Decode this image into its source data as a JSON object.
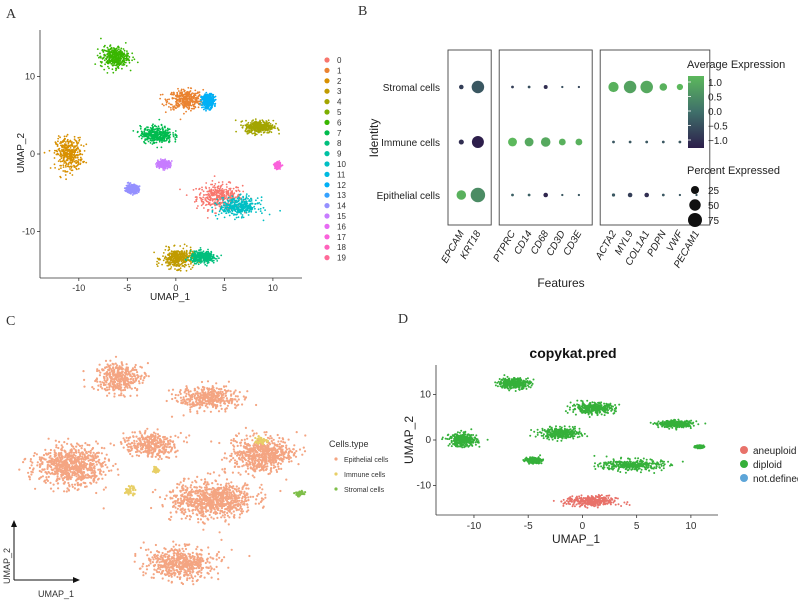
{
  "panels": {
    "a": "A",
    "b": "B",
    "c": "C",
    "d": "D"
  },
  "chart_data": [
    {
      "id": "A",
      "type": "scatter",
      "xlabel": "UMAP_1",
      "ylabel": "UMAP_2",
      "xticks": [
        -10,
        -5,
        0,
        5,
        10
      ],
      "yticks": [
        -10,
        0,
        10
      ],
      "xlim": [
        -14,
        13
      ],
      "ylim": [
        -16,
        16
      ],
      "legend_title": "",
      "categories": [
        "0",
        "1",
        "2",
        "3",
        "4",
        "5",
        "6",
        "7",
        "8",
        "9",
        "10",
        "11",
        "12",
        "13",
        "14",
        "15",
        "16",
        "17",
        "18",
        "19"
      ],
      "colors": [
        "#F8766D",
        "#EA8331",
        "#D89000",
        "#C09B00",
        "#A3A500",
        "#7CAE00",
        "#39B600",
        "#00BB4E",
        "#00BF7D",
        "#00C1A3",
        "#00BFC4",
        "#00BAE0",
        "#00B0F6",
        "#35A2FF",
        "#9590FF",
        "#C77CFF",
        "#E76BF3",
        "#FA62DB",
        "#FF62BC",
        "#FF6A98"
      ],
      "clusters": [
        {
          "x": 4.5,
          "y": -5.5,
          "sx": 2.6,
          "sy": 1.8,
          "cat": 0
        },
        {
          "x": 1.0,
          "y": 7.0,
          "sx": 2.0,
          "sy": 1.4,
          "cat": 1
        },
        {
          "x": -11.0,
          "y": 0.0,
          "sx": 1.5,
          "sy": 2.3,
          "cat": 2
        },
        {
          "x": 0.2,
          "y": -13.5,
          "sx": 1.8,
          "sy": 1.4,
          "cat": 3
        },
        {
          "x": 8.6,
          "y": 3.5,
          "sx": 1.6,
          "sy": 0.9,
          "cat": 4
        },
        {
          "x": -6.3,
          "y": 12.5,
          "sx": 1.6,
          "sy": 1.5,
          "cat": 6
        },
        {
          "x": -2.0,
          "y": 2.5,
          "sx": 1.8,
          "sy": 1.2,
          "cat": 7
        },
        {
          "x": 2.8,
          "y": -13.3,
          "sx": 1.4,
          "sy": 0.8,
          "cat": 8
        },
        {
          "x": 6.5,
          "y": -6.8,
          "sx": 2.2,
          "sy": 1.3,
          "cat": 10
        },
        {
          "x": 3.3,
          "y": 6.8,
          "sx": 0.7,
          "sy": 1.0,
          "cat": 12
        },
        {
          "x": -4.5,
          "y": -4.5,
          "sx": 0.7,
          "sy": 0.6,
          "cat": 14
        },
        {
          "x": -1.2,
          "y": -1.3,
          "sx": 0.7,
          "sy": 0.5,
          "cat": 15
        },
        {
          "x": 10.5,
          "y": -1.5,
          "sx": 0.3,
          "sy": 0.4,
          "cat": 17
        }
      ]
    },
    {
      "id": "B",
      "type": "dotplot",
      "xlabel": "Features",
      "ylabel": "Identity",
      "rows": [
        "Epithelial cells",
        "Immune cells",
        "Stromal cells"
      ],
      "groups": [
        {
          "features": [
            "EPCAM",
            "KRT18"
          ]
        },
        {
          "features": [
            "PTPRC",
            "CD14",
            "CD68",
            "CD3D",
            "CD3E"
          ]
        },
        {
          "features": [
            "ACTA2",
            "MYL9",
            "COL1A1",
            "PDPN",
            "VWF",
            "PECAM1"
          ]
        }
      ],
      "features": [
        "EPCAM",
        "KRT18",
        "PTPRC",
        "CD14",
        "CD68",
        "CD3D",
        "CD3E",
        "ACTA2",
        "MYL9",
        "COL1A1",
        "PDPN",
        "VWF",
        "PECAM1"
      ],
      "avg_expression": [
        [
          0.9,
          0.4,
          -0.2,
          -0.2,
          -0.9,
          -0.3,
          -0.3,
          -0.3,
          -0.6,
          -0.8,
          -0.3,
          -0.3,
          -0.3
        ],
        [
          -0.8,
          -1.0,
          1.0,
          0.8,
          0.8,
          0.9,
          0.9,
          -0.3,
          -0.3,
          -0.3,
          -0.3,
          -0.3,
          -0.6
        ],
        [
          -0.6,
          -0.3,
          -0.6,
          -0.4,
          -0.8,
          -0.4,
          -0.5,
          0.9,
          0.7,
          0.8,
          0.9,
          1.0,
          0.9
        ]
      ],
      "pct_expressed": [
        [
          35,
          80,
          3,
          3,
          8,
          2,
          2,
          4,
          8,
          8,
          3,
          2,
          2
        ],
        [
          10,
          55,
          30,
          30,
          35,
          18,
          18,
          3,
          3,
          3,
          3,
          3,
          5
        ],
        [
          8,
          60,
          3,
          3,
          6,
          2,
          2,
          40,
          60,
          60,
          22,
          15,
          12
        ]
      ],
      "color_legend": {
        "title": "Average Expression",
        "ticks": [
          "1.0",
          "0.5",
          "0.0",
          "−0.5",
          "−1.0"
        ],
        "low": "#2d1e4b",
        "high": "#5cb85c"
      },
      "size_legend": {
        "title": "Percent Expressed",
        "values": [
          "25",
          "50",
          "75"
        ]
      }
    },
    {
      "id": "C",
      "type": "scatter",
      "xlabel": "UMAP_1",
      "ylabel": "UMAP_2",
      "legend_title": "Cells.type",
      "categories": [
        "Epithelial cells",
        "Immune cells",
        "Stromal cells"
      ],
      "colors": [
        "#F4A582",
        "#E8CF66",
        "#7FBF4A"
      ]
    },
    {
      "id": "D",
      "type": "scatter",
      "title": "copykat.pred",
      "xlabel": "UMAP_1",
      "ylabel": "UMAP_2",
      "xticks": [
        -10,
        -5,
        0,
        5,
        10
      ],
      "yticks": [
        -10,
        0,
        10
      ],
      "xlim": [
        -13.5,
        12.5
      ],
      "ylim": [
        -16.5,
        16.5
      ],
      "categories": [
        "aneuploid",
        "diploid",
        "not.defined"
      ],
      "colors": [
        "#E8726A",
        "#35B03A",
        "#5DA5D8"
      ]
    }
  ]
}
